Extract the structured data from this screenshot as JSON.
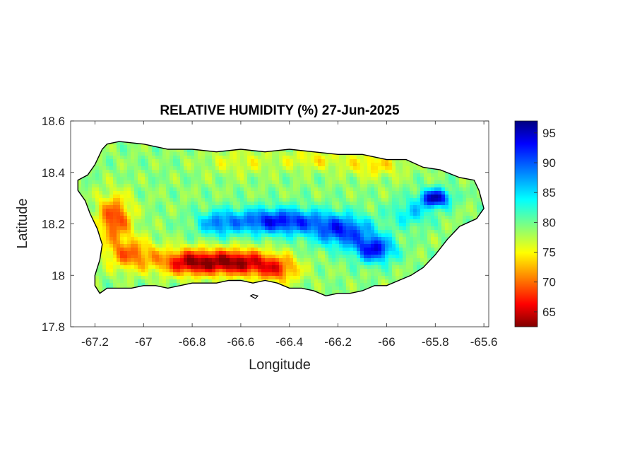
{
  "chart_data": {
    "type": "heatmap",
    "title": "RELATIVE HUMIDITY (%) 27-Jun-2025",
    "xlabel": "Longitude",
    "ylabel": "Latitude",
    "xlim": [
      -67.3,
      -65.58
    ],
    "ylim": [
      17.8,
      18.6
    ],
    "x_ticks": [
      {
        "value": -67.2,
        "label": "-67.2"
      },
      {
        "value": -67.0,
        "label": "-67"
      },
      {
        "value": -66.8,
        "label": "-66.8"
      },
      {
        "value": -66.6,
        "label": "-66.6"
      },
      {
        "value": -66.4,
        "label": "-66.4"
      },
      {
        "value": -66.2,
        "label": "-66.2"
      },
      {
        "value": -66.0,
        "label": "-66"
      },
      {
        "value": -65.8,
        "label": "-65.8"
      },
      {
        "value": -65.6,
        "label": "-65.6"
      }
    ],
    "y_ticks": [
      {
        "value": 17.8,
        "label": "17.8"
      },
      {
        "value": 18.0,
        "label": "18"
      },
      {
        "value": 18.2,
        "label": "18.2"
      },
      {
        "value": 18.4,
        "label": "18.4"
      },
      {
        "value": 18.6,
        "label": "18.6"
      }
    ],
    "colorbar": {
      "colormap": "jet",
      "range": [
        62.5,
        97
      ],
      "ticks": [
        {
          "value": 65,
          "label": "65"
        },
        {
          "value": 70,
          "label": "70"
        },
        {
          "value": 75,
          "label": "75"
        },
        {
          "value": 80,
          "label": "80"
        },
        {
          "value": 85,
          "label": "85"
        },
        {
          "value": 90,
          "label": "90"
        },
        {
          "value": 95,
          "label": "95"
        }
      ]
    },
    "coastline": [
      [
        -67.27,
        18.37
      ],
      [
        -67.23,
        18.39
      ],
      [
        -67.2,
        18.43
      ],
      [
        -67.17,
        18.49
      ],
      [
        -67.15,
        18.51
      ],
      [
        -67.1,
        18.52
      ],
      [
        -67.0,
        18.51
      ],
      [
        -66.9,
        18.49
      ],
      [
        -66.8,
        18.49
      ],
      [
        -66.7,
        18.48
      ],
      [
        -66.6,
        18.49
      ],
      [
        -66.5,
        18.48
      ],
      [
        -66.4,
        18.49
      ],
      [
        -66.3,
        18.48
      ],
      [
        -66.2,
        18.47
      ],
      [
        -66.1,
        18.47
      ],
      [
        -66.0,
        18.45
      ],
      [
        -65.92,
        18.45
      ],
      [
        -65.85,
        18.42
      ],
      [
        -65.78,
        18.41
      ],
      [
        -65.7,
        18.38
      ],
      [
        -65.64,
        18.37
      ],
      [
        -65.62,
        18.33
      ],
      [
        -65.6,
        18.26
      ],
      [
        -65.63,
        18.22
      ],
      [
        -65.7,
        18.19
      ],
      [
        -65.75,
        18.14
      ],
      [
        -65.8,
        18.08
      ],
      [
        -65.85,
        18.03
      ],
      [
        -65.9,
        18.0
      ],
      [
        -65.95,
        17.98
      ],
      [
        -66.0,
        17.96
      ],
      [
        -66.05,
        17.96
      ],
      [
        -66.1,
        17.94
      ],
      [
        -66.15,
        17.93
      ],
      [
        -66.2,
        17.93
      ],
      [
        -66.25,
        17.92
      ],
      [
        -66.3,
        17.94
      ],
      [
        -66.35,
        17.95
      ],
      [
        -66.4,
        17.95
      ],
      [
        -66.45,
        17.97
      ],
      [
        -66.5,
        17.98
      ],
      [
        -66.55,
        17.97
      ],
      [
        -66.6,
        17.98
      ],
      [
        -66.65,
        17.98
      ],
      [
        -66.7,
        17.97
      ],
      [
        -66.75,
        17.97
      ],
      [
        -66.8,
        17.97
      ],
      [
        -66.85,
        17.96
      ],
      [
        -66.9,
        17.95
      ],
      [
        -66.95,
        17.96
      ],
      [
        -67.0,
        17.96
      ],
      [
        -67.05,
        17.95
      ],
      [
        -67.1,
        17.95
      ],
      [
        -67.15,
        17.95
      ],
      [
        -67.18,
        17.93
      ],
      [
        -67.2,
        17.96
      ],
      [
        -67.2,
        18.0
      ],
      [
        -67.18,
        18.06
      ],
      [
        -67.17,
        18.12
      ],
      [
        -67.19,
        18.18
      ],
      [
        -67.22,
        18.24
      ],
      [
        -67.24,
        18.29
      ],
      [
        -67.27,
        18.33
      ]
    ],
    "islands": [
      [
        [
          -66.56,
          17.92
        ],
        [
          -66.54,
          17.91
        ],
        [
          -66.53,
          17.92
        ],
        [
          -66.55,
          17.925
        ]
      ]
    ],
    "field_features": [
      {
        "kind": "base",
        "value": 79
      },
      {
        "kind": "dry",
        "center": [
          -66.62,
          18.05
        ],
        "peak": 63.5,
        "radius": [
          0.15,
          0.05
        ]
      },
      {
        "kind": "dry",
        "center": [
          -66.82,
          18.05
        ],
        "peak": 66,
        "radius": [
          0.12,
          0.05
        ]
      },
      {
        "kind": "dry",
        "center": [
          -67.12,
          18.22
        ],
        "peak": 68,
        "radius": [
          0.07,
          0.09
        ]
      },
      {
        "kind": "dry",
        "center": [
          -67.05,
          18.08
        ],
        "peak": 70,
        "radius": [
          0.1,
          0.06
        ]
      },
      {
        "kind": "dry",
        "center": [
          -66.45,
          18.02
        ],
        "peak": 70,
        "radius": [
          0.09,
          0.05
        ]
      },
      {
        "kind": "dry",
        "center": [
          -66.05,
          18.43
        ],
        "peak": 74,
        "radius": [
          0.12,
          0.05
        ]
      },
      {
        "kind": "dry",
        "center": [
          -66.3,
          18.45
        ],
        "peak": 75,
        "radius": [
          0.12,
          0.04
        ]
      },
      {
        "kind": "dry",
        "center": [
          -66.6,
          18.44
        ],
        "peak": 76,
        "radius": [
          0.15,
          0.05
        ]
      },
      {
        "kind": "wet",
        "center": [
          -66.45,
          18.21
        ],
        "peak": 93,
        "radius": [
          0.2,
          0.05
        ]
      },
      {
        "kind": "wet",
        "center": [
          -66.18,
          18.17
        ],
        "peak": 91,
        "radius": [
          0.12,
          0.06
        ]
      },
      {
        "kind": "wet",
        "center": [
          -66.05,
          18.1
        ],
        "peak": 93,
        "radius": [
          0.08,
          0.05
        ]
      },
      {
        "kind": "wet",
        "center": [
          -65.8,
          18.3
        ],
        "peak": 96,
        "radius": [
          0.06,
          0.035
        ]
      },
      {
        "kind": "wet",
        "center": [
          -66.7,
          18.2
        ],
        "peak": 86,
        "radius": [
          0.08,
          0.05
        ]
      },
      {
        "kind": "wet",
        "center": [
          -65.9,
          18.24
        ],
        "peak": 85,
        "radius": [
          0.08,
          0.05
        ]
      }
    ]
  }
}
